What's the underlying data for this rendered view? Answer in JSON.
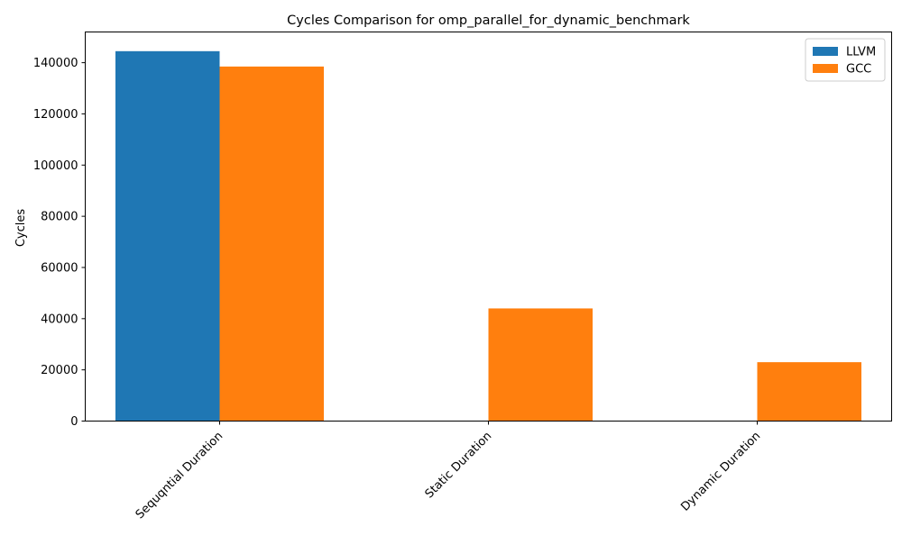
{
  "chart_data": {
    "type": "bar",
    "title": "Cycles Comparison for omp_parallel_for_dynamic_benchmark",
    "xlabel": "",
    "ylabel": "Cycles",
    "categories": [
      "Sequqntial Duration",
      "Static Duration",
      "Dynamic Duration"
    ],
    "series": [
      {
        "name": "LLVM",
        "color": "#1f77b4",
        "values": [
          144500,
          0,
          0
        ]
      },
      {
        "name": "GCC",
        "color": "#ff7f0e",
        "values": [
          138500,
          44000,
          23000
        ]
      }
    ],
    "ylim": [
      0,
      152000
    ],
    "yticks": [
      0,
      20000,
      40000,
      60000,
      80000,
      100000,
      120000,
      140000
    ],
    "grid": false,
    "legend_position": "top-right"
  }
}
